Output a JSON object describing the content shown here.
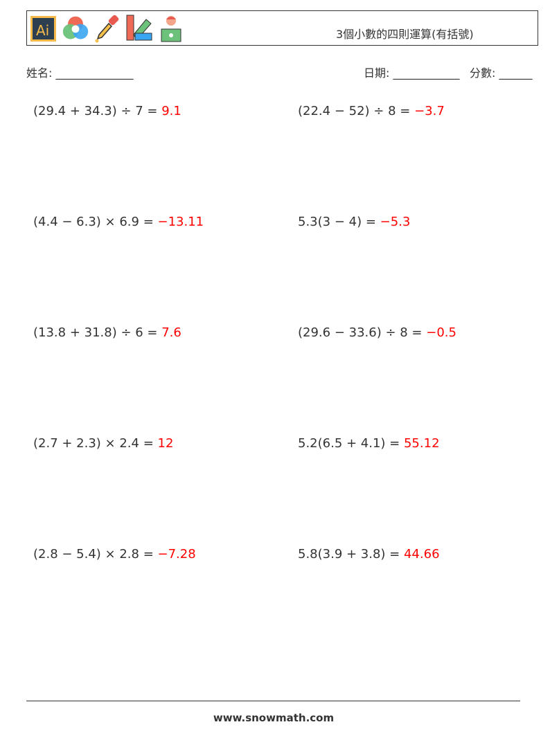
{
  "header": {
    "title": "3個小數的四則運算(有括號)",
    "icons": [
      "illustrator-logo-icon",
      "color-circles-icon",
      "eyedropper-icon",
      "color-swatch-icon",
      "designer-person-icon"
    ]
  },
  "info": {
    "name_label": "姓名: ______________",
    "date_label": "日期: ____________",
    "score_label": "分數: ______"
  },
  "colors": {
    "answer": "#ff0000",
    "text": "#333333"
  },
  "problems": [
    {
      "q": "(29.4 + 34.3) ÷ 7 = ",
      "a": "9.1"
    },
    {
      "q": "(22.4 − 52) ÷ 8 = ",
      "a": "−3.7"
    },
    {
      "q": "(4.4 − 6.3) × 6.9 = ",
      "a": "−13.11"
    },
    {
      "q": "5.3(3 − 4) = ",
      "a": "−5.3"
    },
    {
      "q": "(13.8 + 31.8) ÷ 6 = ",
      "a": "7.6"
    },
    {
      "q": "(29.6 − 33.6) ÷ 8 = ",
      "a": "−0.5"
    },
    {
      "q": "(2.7 + 2.3) × 2.4 = ",
      "a": "12"
    },
    {
      "q": "5.2(6.5 + 4.1) = ",
      "a": "55.12"
    },
    {
      "q": "(2.8 − 5.4) × 2.8 = ",
      "a": "−7.28"
    },
    {
      "q": "5.8(3.9 + 3.8) = ",
      "a": "44.66"
    }
  ],
  "footer": {
    "site": "www.snowmath.com"
  }
}
